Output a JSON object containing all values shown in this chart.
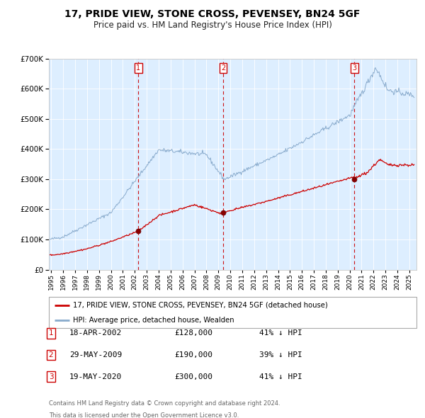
{
  "title": "17, PRIDE VIEW, STONE CROSS, PEVENSEY, BN24 5GF",
  "subtitle": "Price paid vs. HM Land Registry's House Price Index (HPI)",
  "legend_property": "17, PRIDE VIEW, STONE CROSS, PEVENSEY, BN24 5GF (detached house)",
  "legend_hpi": "HPI: Average price, detached house, Wealden",
  "property_color": "#cc0000",
  "hpi_color": "#88aacc",
  "background_color": "#ddeeff",
  "transactions": [
    {
      "num": 1,
      "date": "18-APR-2002",
      "price": 128000,
      "pct": "41% ↓ HPI",
      "year": 2002.3
    },
    {
      "num": 2,
      "date": "29-MAY-2009",
      "price": 190000,
      "pct": "39% ↓ HPI",
      "year": 2009.4
    },
    {
      "num": 3,
      "date": "19-MAY-2020",
      "price": 300000,
      "pct": "41% ↓ HPI",
      "year": 2020.4
    }
  ],
  "footer_line1": "Contains HM Land Registry data © Crown copyright and database right 2024.",
  "footer_line2": "This data is licensed under the Open Government Licence v3.0.",
  "ylim": [
    0,
    700000
  ],
  "xlim_start": 1994.8,
  "xlim_end": 2025.6
}
